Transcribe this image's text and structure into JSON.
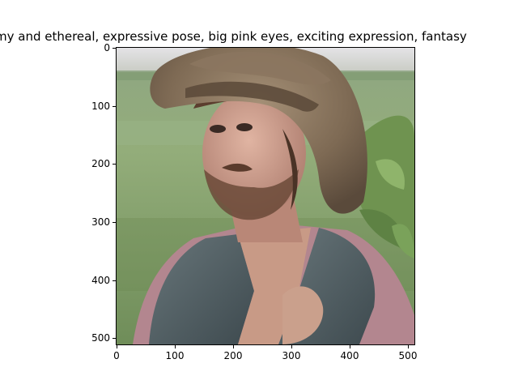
{
  "figure": {
    "title": "my and ethereal, expressive pose, big pink eyes, exciting expression, fantasy"
  },
  "axes": {
    "y_ticks": [
      "0",
      "100",
      "200",
      "300",
      "400",
      "500"
    ],
    "x_ticks": [
      "0",
      "100",
      "200",
      "300",
      "400",
      "500"
    ]
  },
  "image": {
    "description_visible": false,
    "palette": {
      "sky": "#d9d9dc",
      "field": "#8ea67a",
      "field_dark": "#5f7c48",
      "hat": "#7a6650",
      "hat_light": "#a08a70",
      "skin": "#c99a86",
      "vest": "#4e5a5e",
      "shirt": "#b3848d",
      "leaves": "#6d8f4c"
    }
  }
}
